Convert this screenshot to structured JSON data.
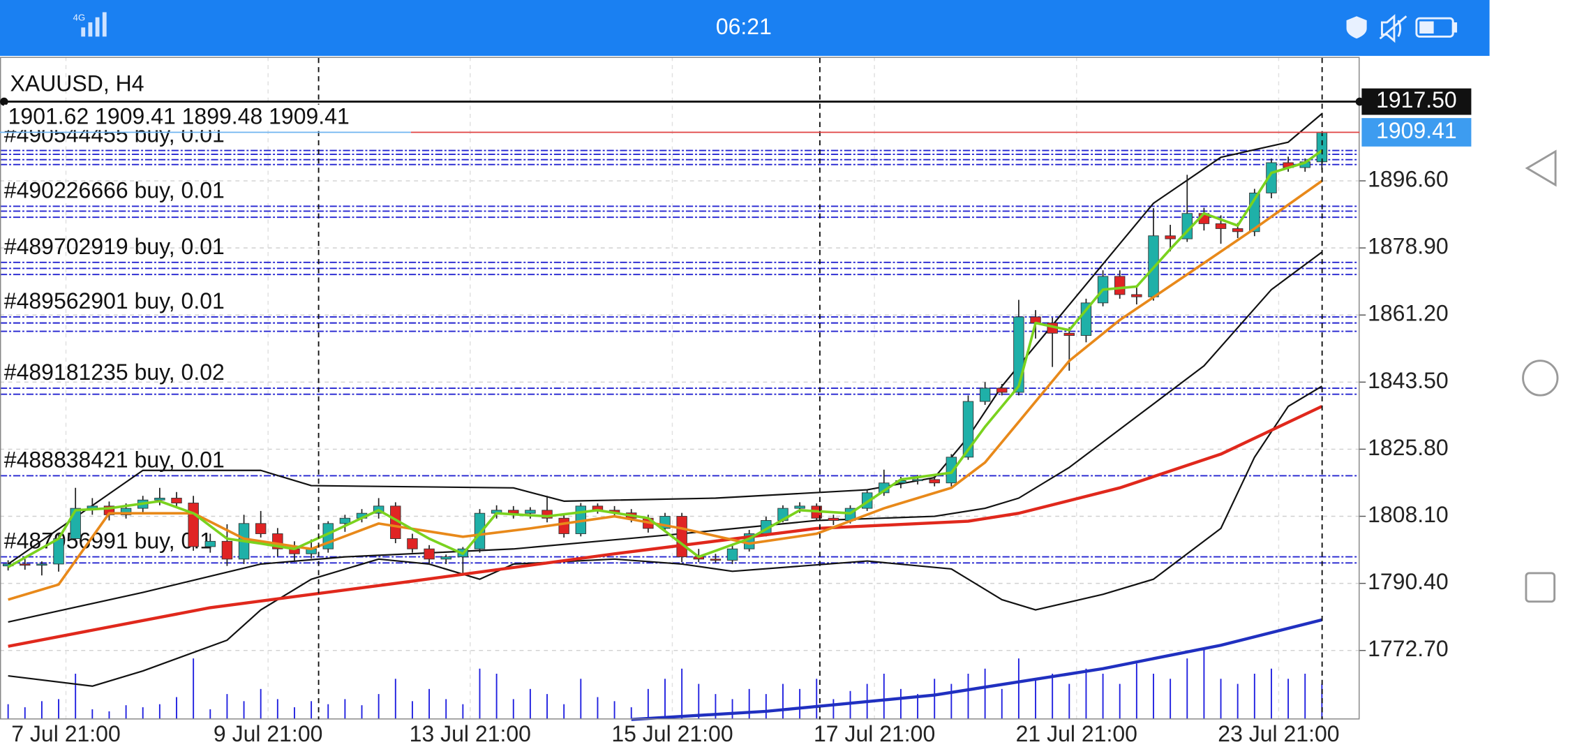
{
  "status_bar": {
    "time": "06:21"
  },
  "chart_data": {
    "type": "candlestick",
    "title": "XAUUSD, H4",
    "ohlc_info": "1901.62 1909.41 1899.48 1909.41",
    "up_color": "#1fb0a8",
    "down_color": "#e02424",
    "open": [
      1795.0,
      1795.5,
      1795.2,
      1795.5,
      1802.2,
      1810.2,
      1810.8,
      1808.5,
      1810.2,
      1812.4,
      1812.9,
      1811.6,
      1800.1,
      1801.5,
      1796.8,
      1806.2,
      1803.5,
      1799.5,
      1798.2,
      1799.5,
      1806.2,
      1807.6,
      1808.9,
      1810.8,
      1802.2,
      1799.5,
      1796.8,
      1797.4,
      1799.5,
      1808.9,
      1809.7,
      1808.9,
      1809.7,
      1807.6,
      1803.5,
      1810.8,
      1809.7,
      1809.0,
      1807.6,
      1804.9,
      1808.1,
      1797.4,
      1796.8,
      1796.5,
      1799.5,
      1803.5,
      1807.0,
      1810.2,
      1810.8,
      1807.6,
      1807.0,
      1810.2,
      1814.3,
      1816.9,
      1817.5,
      1817.8,
      1816.9,
      1823.7,
      1838.4,
      1841.9,
      1840.8,
      1860.7,
      1859.1,
      1856.4,
      1855.8,
      1864.4,
      1871.4,
      1866.6,
      1866.0,
      1882.1,
      1881.3,
      1888.0,
      1885.3,
      1884.0,
      1883.2,
      1893.4,
      1901.4,
      1900.1,
      1901.62
    ],
    "high": [
      1796.5,
      1796.8,
      1796.2,
      1803.8,
      1815.6,
      1812.9,
      1812.0,
      1811.5,
      1813.5,
      1815.6,
      1814.5,
      1813.5,
      1803.5,
      1806.0,
      1808.5,
      1809.5,
      1805.0,
      1801.5,
      1802.0,
      1806.8,
      1808.5,
      1810.0,
      1812.9,
      1811.8,
      1803.5,
      1800.5,
      1798.0,
      1800.0,
      1810.0,
      1811.0,
      1810.8,
      1810.5,
      1813.5,
      1808.5,
      1811.6,
      1811.5,
      1810.8,
      1810.0,
      1808.5,
      1809.0,
      1809.0,
      1799.5,
      1798.2,
      1800.5,
      1804.5,
      1808.0,
      1811.0,
      1811.8,
      1811.5,
      1808.5,
      1811.0,
      1815.0,
      1820.4,
      1818.5,
      1819.0,
      1819.0,
      1824.5,
      1840.0,
      1843.5,
      1843.0,
      1865.2,
      1862.5,
      1860.5,
      1858.0,
      1865.5,
      1873.0,
      1873.0,
      1868.5,
      1889.4,
      1885.0,
      1898.2,
      1889.5,
      1887.5,
      1885.5,
      1894.5,
      1902.5,
      1903.0,
      1902.5,
      1909.41
    ],
    "low": [
      1793.8,
      1794.0,
      1792.5,
      1793.5,
      1801.5,
      1808.5,
      1807.0,
      1807.5,
      1809.0,
      1811.0,
      1810.5,
      1799.0,
      1798.5,
      1795.0,
      1795.5,
      1802.5,
      1797.5,
      1796.0,
      1797.0,
      1798.5,
      1804.0,
      1806.5,
      1807.5,
      1801.0,
      1798.5,
      1795.5,
      1795.5,
      1792.5,
      1798.5,
      1807.5,
      1807.5,
      1807.5,
      1806.5,
      1802.5,
      1802.8,
      1808.8,
      1808.0,
      1806.5,
      1803.8,
      1804.0,
      1796.0,
      1796.0,
      1795.8,
      1795.5,
      1798.8,
      1802.8,
      1806.5,
      1809.0,
      1806.8,
      1805.8,
      1806.2,
      1809.5,
      1813.5,
      1815.5,
      1816.5,
      1816.0,
      1816.0,
      1823.0,
      1837.5,
      1840.0,
      1840.0,
      1855.0,
      1847.5,
      1846.5,
      1854.0,
      1863.5,
      1865.5,
      1864.0,
      1865.0,
      1878.0,
      1880.5,
      1883.5,
      1880.0,
      1881.5,
      1882.0,
      1892.0,
      1899.0,
      1899.0,
      1899.48
    ],
    "close": [
      1795.5,
      1795.2,
      1795.5,
      1802.2,
      1810.2,
      1810.8,
      1808.5,
      1810.2,
      1812.4,
      1812.9,
      1811.6,
      1800.1,
      1801.5,
      1796.8,
      1806.2,
      1803.5,
      1799.5,
      1798.2,
      1799.5,
      1806.2,
      1807.6,
      1808.9,
      1810.8,
      1802.2,
      1799.5,
      1796.8,
      1797.4,
      1799.5,
      1808.9,
      1809.7,
      1808.9,
      1809.7,
      1807.6,
      1803.5,
      1810.8,
      1809.7,
      1809.0,
      1807.6,
      1804.9,
      1808.1,
      1797.4,
      1796.8,
      1796.5,
      1799.5,
      1803.5,
      1807.0,
      1810.2,
      1810.8,
      1807.6,
      1807.0,
      1810.2,
      1814.3,
      1816.9,
      1817.5,
      1817.8,
      1816.9,
      1823.7,
      1838.4,
      1841.9,
      1840.8,
      1860.7,
      1859.1,
      1856.4,
      1855.8,
      1864.4,
      1871.4,
      1866.6,
      1866.0,
      1882.1,
      1881.3,
      1888.0,
      1885.3,
      1884.0,
      1883.2,
      1893.4,
      1901.4,
      1900.1,
      1901.62,
      1909.41
    ],
    "ylim": [
      1754.5,
      1929.3
    ],
    "yticks": [
      {
        "value": 1896.6,
        "label": "1896.60"
      },
      {
        "value": 1878.9,
        "label": "1878.90"
      },
      {
        "value": 1861.2,
        "label": "1861.20"
      },
      {
        "value": 1843.5,
        "label": "1843.50"
      },
      {
        "value": 1825.8,
        "label": "1825.80"
      },
      {
        "value": 1808.1,
        "label": "1808.10"
      },
      {
        "value": 1790.4,
        "label": "1790.40"
      },
      {
        "value": 1772.7,
        "label": "1772.70"
      }
    ],
    "xtick_labels": [
      "7 Jul 21:00",
      "9 Jul 21:00",
      "13 Jul 21:00",
      "15 Jul 21:00",
      "17 Jul 21:00",
      "21 Jul 21:00",
      "23 Jul 21:00"
    ],
    "grid": true,
    "bid": {
      "value": 1917.5,
      "label": "1917.50"
    },
    "last": {
      "value": 1909.41,
      "label": "1909.41"
    },
    "indicators": [
      {
        "color": "#111111",
        "width": 1.5,
        "x": [
          0,
          8,
          15,
          18,
          30,
          33,
          42,
          51,
          55,
          57,
          59,
          63,
          66,
          68,
          72,
          76,
          78
        ],
        "values": [
          1795.5,
          1820.2,
          1820.2,
          1816.2,
          1815.6,
          1812.1,
          1812.9,
          1815.1,
          1818.3,
          1829.0,
          1842.4,
          1863.9,
          1880.0,
          1890.7,
          1902.8,
          1906.8,
          1914.3
        ]
      },
      {
        "color": "#111111",
        "width": 1.5,
        "x": [
          0,
          8,
          15,
          20,
          30,
          40,
          48,
          55,
          58,
          60,
          63,
          67,
          71,
          75,
          78
        ],
        "values": [
          1780.2,
          1788.0,
          1795.5,
          1797.4,
          1799.5,
          1803.5,
          1807.0,
          1808.1,
          1810.2,
          1812.9,
          1821.0,
          1834.4,
          1847.8,
          1867.9,
          1877.8
        ]
      },
      {
        "color": "#111111",
        "width": 1.5,
        "x": [
          0,
          5,
          8,
          13,
          15,
          18,
          22,
          25,
          28,
          30,
          36,
          40,
          43,
          51,
          56,
          59,
          61,
          65,
          68,
          72,
          74,
          76,
          78
        ],
        "values": [
          1766.0,
          1763.3,
          1767.3,
          1775.4,
          1783.4,
          1791.5,
          1796.8,
          1795.5,
          1791.5,
          1795.5,
          1796.8,
          1795.5,
          1793.6,
          1796.3,
          1794.2,
          1786.1,
          1783.4,
          1787.5,
          1791.5,
          1804.9,
          1823.7,
          1837.1,
          1842.4
        ]
      },
      {
        "color": "#e0281c",
        "width": 3,
        "x": [
          0,
          12,
          24,
          36,
          48,
          57,
          60,
          66,
          72,
          78
        ],
        "values": [
          1773.8,
          1784.0,
          1791.0,
          1798.2,
          1804.9,
          1806.8,
          1808.9,
          1815.6,
          1824.5,
          1837.1
        ]
      },
      {
        "color": "#e8891a",
        "width": 2.5,
        "x": [
          0,
          3,
          6,
          11,
          14,
          18,
          22,
          27,
          31,
          36,
          40,
          44,
          48,
          52,
          56,
          58,
          60,
          63,
          66,
          70,
          74,
          78
        ],
        "values": [
          1786.1,
          1790.1,
          1808.9,
          1808.9,
          1802.2,
          1799.5,
          1806.2,
          1802.7,
          1804.9,
          1808.1,
          1804.9,
          1800.9,
          1803.5,
          1810.2,
          1815.6,
          1822.3,
          1833.0,
          1849.1,
          1859.9,
          1871.9,
          1884.0,
          1896.6
        ]
      },
      {
        "color": "#7ad21e",
        "width": 2.5,
        "x": [
          0,
          3,
          4,
          6,
          9,
          11,
          13,
          15,
          17,
          19,
          22,
          25,
          27,
          29,
          32,
          35,
          38,
          41,
          44,
          47,
          50,
          53,
          56,
          58,
          60,
          61,
          63,
          65,
          67,
          69,
          71,
          73,
          75,
          77,
          78
        ],
        "values": [
          1794.7,
          1802.2,
          1809.7,
          1810.2,
          1812.1,
          1808.9,
          1802.2,
          1800.9,
          1799.5,
          1803.5,
          1809.7,
          1802.2,
          1798.2,
          1808.9,
          1808.1,
          1809.7,
          1807.6,
          1797.4,
          1802.2,
          1809.7,
          1808.9,
          1817.8,
          1819.6,
          1831.7,
          1842.4,
          1859.1,
          1857.2,
          1867.9,
          1868.7,
          1878.6,
          1888.0,
          1884.8,
          1898.7,
          1901.4,
          1904.6
        ]
      }
    ],
    "volume": {
      "color": "#2020e0",
      "vlim": [
        0,
        200
      ],
      "values": [
        15,
        12,
        18,
        20,
        45,
        10,
        8,
        14,
        12,
        15,
        22,
        60,
        10,
        25,
        18,
        30,
        20,
        12,
        18,
        15,
        20,
        14,
        25,
        40,
        18,
        30,
        20,
        15,
        50,
        45,
        20,
        30,
        25,
        15,
        40,
        22,
        18,
        12,
        30,
        40,
        50,
        35,
        25,
        20,
        30,
        25,
        35,
        30,
        40,
        20,
        28,
        35,
        45,
        30,
        25,
        40,
        35,
        45,
        50,
        30,
        60,
        40,
        45,
        35,
        50,
        45,
        35,
        55,
        45,
        40,
        60,
        70,
        40,
        35,
        45,
        50,
        40,
        45,
        35
      ],
      "ma": {
        "color": "#2030c0",
        "x": [
          37,
          45,
          55,
          65,
          72,
          78
        ],
        "values": [
          0,
          8,
          24,
          50,
          73,
          98
        ]
      }
    },
    "order_color": "#2424d0",
    "orders": [
      {
        "label": "#490544455 buy, 0.01",
        "levels": [
          1904.6,
          1903.6,
          1902.2,
          1900.9
        ]
      },
      {
        "label": "#490226666 buy, 0.01",
        "levels": [
          1889.9,
          1888.6,
          1887.0
        ]
      },
      {
        "label": "#489702919 buy, 0.01",
        "levels": [
          1875.1,
          1873.5,
          1871.9
        ]
      },
      {
        "label": "#489562901 buy, 0.01",
        "levels": [
          1860.7,
          1859.1,
          1856.9
        ]
      },
      {
        "label": "#489181235 buy, 0.02",
        "levels": [
          1841.9,
          1840.3
        ]
      },
      {
        "label": "#488838421 buy, 0.01",
        "levels": [
          1818.8
        ]
      },
      {
        "label": "#487956991 buy, 0.1",
        "levels": [
          1797.4,
          1795.8
        ]
      }
    ]
  }
}
